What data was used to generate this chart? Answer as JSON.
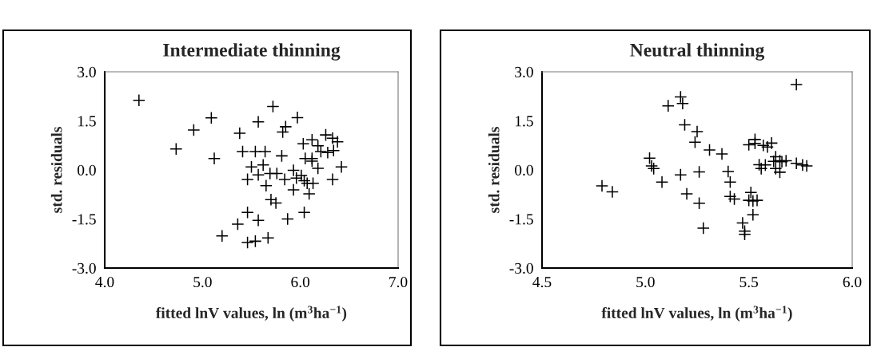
{
  "chart_data": [
    {
      "type": "scatter",
      "title": "Intermediate thinning",
      "xlabel": "fitted lnV values, ln (m$^{3}$ha$^{−1}$)",
      "ylabel": "std. residuals",
      "marker": "cross",
      "grid": false,
      "xlim": [
        4.0,
        7.0
      ],
      "xticks": [
        {
          "value": 4.0,
          "label": "4.0"
        },
        {
          "value": 5.0,
          "label": "5.0"
        },
        {
          "value": 6.0,
          "label": "6.0"
        },
        {
          "value": 7.0,
          "label": "7.0"
        }
      ],
      "ylim": [
        -3.0,
        3.0
      ],
      "yticks": [
        {
          "value": -3.0,
          "label": "-3.0"
        },
        {
          "value": -1.5,
          "label": "-1.5"
        },
        {
          "value": 0.0,
          "label": "0.0"
        },
        {
          "value": 1.5,
          "label": "1.5"
        },
        {
          "value": 3.0,
          "label": "3.0"
        }
      ],
      "series": [
        {
          "color": "#000000",
          "x": [
            4.35,
            5.72,
            5.09,
            5.97,
            4.91,
            5.57,
            5.85,
            5.82,
            5.38,
            4.73,
            5.12,
            5.41,
            5.54,
            5.64,
            5.81,
            6.03,
            6.12,
            6.26,
            6.33,
            6.38,
            6.18,
            6.21,
            6.28,
            6.34,
            6.05,
            6.12,
            5.5,
            5.62,
            5.46,
            5.57,
            5.69,
            5.76,
            5.65,
            5.84,
            5.93,
            5.96,
            6.01,
            6.04,
            6.07,
            6.13,
            5.93,
            6.09,
            6.12,
            6.18,
            6.33,
            6.42,
            5.7,
            5.75,
            5.46,
            5.36,
            5.57,
            5.87,
            6.04,
            5.2,
            5.46,
            5.54,
            5.67
          ],
          "values": [
            2.13,
            1.94,
            1.59,
            1.6,
            1.22,
            1.47,
            1.32,
            1.16,
            1.12,
            0.64,
            0.35,
            0.56,
            0.56,
            0.56,
            0.43,
            0.8,
            0.92,
            1.07,
            0.97,
            0.86,
            0.74,
            0.56,
            0.53,
            0.59,
            0.35,
            0.35,
            0.09,
            0.15,
            -0.29,
            -0.15,
            -0.11,
            -0.11,
            -0.48,
            -0.29,
            -0.01,
            -0.25,
            -0.17,
            -0.33,
            -0.41,
            -0.41,
            -0.61,
            -0.73,
            0.27,
            0.05,
            -0.29,
            0.09,
            -0.91,
            -1.01,
            -1.3,
            -1.66,
            -1.54,
            -1.5,
            -1.3,
            -2.02,
            -2.22,
            -2.18,
            -2.08
          ]
        }
      ]
    },
    {
      "type": "scatter",
      "title": "Neutral thinning",
      "xlabel": "fitted lnV values, ln (m$^{3}$ha$^{−1}$)",
      "ylabel": "std. residuals",
      "marker": "cross",
      "grid": false,
      "xlim": [
        4.5,
        6.0
      ],
      "xticks": [
        {
          "value": 4.5,
          "label": "4.5"
        },
        {
          "value": 5.0,
          "label": "5.0"
        },
        {
          "value": 5.5,
          "label": "5.5"
        },
        {
          "value": 6.0,
          "label": "6.0"
        }
      ],
      "ylim": [
        -3.0,
        3.0
      ],
      "yticks": [
        {
          "value": -3.0,
          "label": "-3.0"
        },
        {
          "value": -1.5,
          "label": "-1.5"
        },
        {
          "value": 0.0,
          "label": "0.0"
        },
        {
          "value": 1.5,
          "label": "1.5"
        },
        {
          "value": 3.0,
          "label": "3.0"
        }
      ],
      "series": [
        {
          "color": "#000000",
          "x": [
            5.73,
            5.17,
            5.18,
            5.11,
            5.19,
            5.25,
            5.24,
            5.31,
            5.37,
            5.5,
            5.53,
            5.53,
            5.57,
            5.59,
            5.61,
            5.02,
            5.03,
            5.04,
            5.08,
            4.79,
            4.84,
            5.17,
            5.26,
            5.2,
            5.26,
            5.28,
            5.4,
            5.41,
            5.41,
            5.43,
            5.51,
            5.5,
            5.52,
            5.54,
            5.52,
            5.47,
            5.48,
            5.48,
            5.55,
            5.56,
            5.58,
            5.63,
            5.62,
            5.65,
            5.63,
            5.65,
            5.68,
            5.73,
            5.76,
            5.78,
            5.66
          ],
          "values": [
            2.61,
            2.23,
            2.03,
            1.96,
            1.38,
            1.17,
            0.85,
            0.61,
            0.49,
            0.77,
            0.93,
            0.81,
            0.75,
            0.7,
            0.82,
            0.36,
            0.12,
            0.04,
            -0.37,
            -0.49,
            -0.67,
            -0.15,
            -0.06,
            -0.73,
            -1.02,
            -1.78,
            -0.05,
            -0.37,
            -0.81,
            -0.89,
            -0.69,
            -0.93,
            -0.95,
            -0.93,
            -1.37,
            -1.62,
            -1.87,
            -1.97,
            0.16,
            0.04,
            0.15,
            0.4,
            0.26,
            0.28,
            0.04,
            -0.07,
            0.28,
            0.2,
            0.15,
            0.12,
            0.25
          ]
        }
      ]
    }
  ]
}
